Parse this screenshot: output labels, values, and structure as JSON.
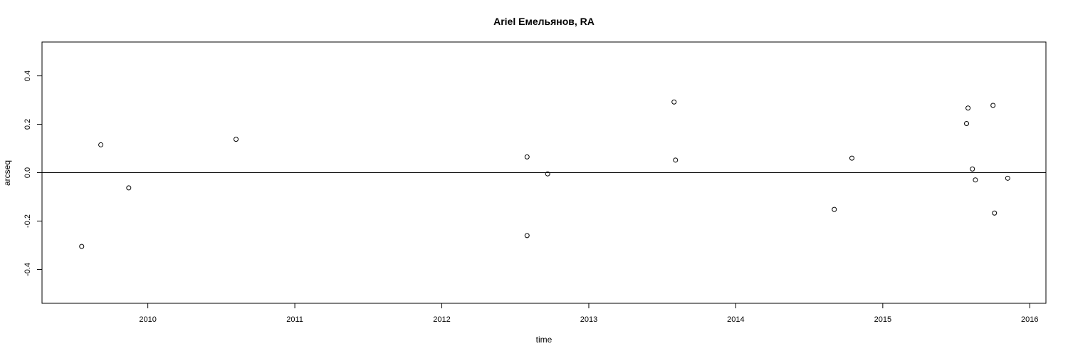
{
  "chart_data": {
    "type": "scatter",
    "title": "Ariel Емельянов, RA",
    "xlabel": "time",
    "ylabel": "arcseq",
    "xlim": [
      2009.28,
      2016.11
    ],
    "ylim": [
      -0.54,
      0.54
    ],
    "x_ticks": [
      2010,
      2011,
      2012,
      2013,
      2014,
      2015,
      2016
    ],
    "y_ticks": [
      -0.4,
      -0.2,
      0.0,
      0.2,
      0.4
    ],
    "y_tick_labels": [
      "-0.4",
      "-0.2",
      "0.0",
      "0.2",
      "0.4"
    ],
    "reference_line_y": 0,
    "grid": false,
    "marker": "open-circle",
    "points": [
      {
        "x": 2009.55,
        "y": -0.305
      },
      {
        "x": 2009.68,
        "y": 0.115
      },
      {
        "x": 2009.87,
        "y": -0.063
      },
      {
        "x": 2010.6,
        "y": 0.138
      },
      {
        "x": 2012.58,
        "y": 0.065
      },
      {
        "x": 2012.58,
        "y": -0.26
      },
      {
        "x": 2012.72,
        "y": -0.005
      },
      {
        "x": 2013.58,
        "y": 0.292
      },
      {
        "x": 2013.59,
        "y": 0.052
      },
      {
        "x": 2014.67,
        "y": -0.152
      },
      {
        "x": 2014.79,
        "y": 0.06
      },
      {
        "x": 2015.57,
        "y": 0.203
      },
      {
        "x": 2015.58,
        "y": 0.267
      },
      {
        "x": 2015.61,
        "y": 0.015
      },
      {
        "x": 2015.63,
        "y": -0.03
      },
      {
        "x": 2015.75,
        "y": 0.278
      },
      {
        "x": 2015.76,
        "y": -0.167
      },
      {
        "x": 2015.85,
        "y": -0.023
      }
    ]
  }
}
